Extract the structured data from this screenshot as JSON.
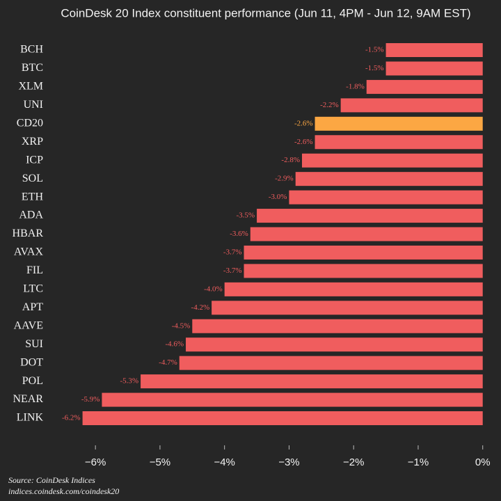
{
  "chart_data": {
    "type": "hbar",
    "title": "CoinDesk 20 Index constituent performance (Jun 11, 4PM - Jun 12, 9AM EST)",
    "categories": [
      "BCH",
      "BTC",
      "XLM",
      "UNI",
      "CD20",
      "XRP",
      "ICP",
      "SOL",
      "ETH",
      "ADA",
      "HBAR",
      "AVAX",
      "FIL",
      "LTC",
      "APT",
      "AAVE",
      "SUI",
      "DOT",
      "POL",
      "NEAR",
      "LINK"
    ],
    "values": [
      -1.5,
      -1.5,
      -1.8,
      -2.2,
      -2.6,
      -2.6,
      -2.8,
      -2.9,
      -3.0,
      -3.5,
      -3.6,
      -3.7,
      -3.7,
      -4.0,
      -4.2,
      -4.5,
      -4.6,
      -4.7,
      -5.3,
      -5.9,
      -6.2
    ],
    "value_labels": [
      "-1.5%",
      "-1.5%",
      "-1.8%",
      "-2.2%",
      "-2.6%",
      "-2.6%",
      "-2.8%",
      "-2.9%",
      "-3.0%",
      "-3.5%",
      "-3.6%",
      "-3.7%",
      "-3.7%",
      "-4.0%",
      "-4.2%",
      "-4.5%",
      "-4.6%",
      "-4.7%",
      "-5.3%",
      "-5.9%",
      "-6.2%"
    ],
    "colors": [
      "#f05d5e",
      "#f05d5e",
      "#f05d5e",
      "#f05d5e",
      "#fca743",
      "#f05d5e",
      "#f05d5e",
      "#f05d5e",
      "#f05d5e",
      "#f05d5e",
      "#f05d5e",
      "#f05d5e",
      "#f05d5e",
      "#f05d5e",
      "#f05d5e",
      "#f05d5e",
      "#f05d5e",
      "#f05d5e",
      "#f05d5e",
      "#f05d5e",
      "#f05d5e"
    ],
    "xlim": [
      -6.6,
      0.1
    ],
    "xticks": [
      {
        "value": -6,
        "label": "−6%"
      },
      {
        "value": -5,
        "label": "−5%"
      },
      {
        "value": -4,
        "label": "−4%"
      },
      {
        "value": -3,
        "label": "−3%"
      },
      {
        "value": -2,
        "label": "−2%"
      },
      {
        "value": -1,
        "label": "−1%"
      },
      {
        "value": 0,
        "label": "0%"
      }
    ],
    "source": [
      "Source: CoinDesk Indices",
      "indices.coindesk.com/coindesk20"
    ]
  }
}
